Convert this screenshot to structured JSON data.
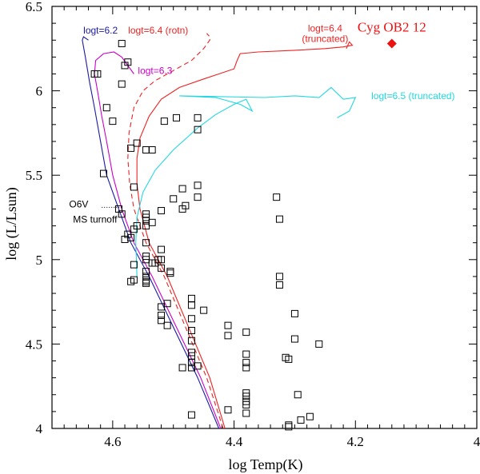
{
  "chart_data": {
    "type": "scatter",
    "title": "",
    "xlabel": "log Temp(K)",
    "ylabel": "log (L/Lsun)",
    "xlim": [
      4.7,
      4.0
    ],
    "ylim": [
      4.0,
      6.5
    ],
    "x_ticks": [
      "4.6",
      "4.4",
      "4.2",
      "4"
    ],
    "x_tick_values": [
      4.6,
      4.4,
      4.2,
      4.0
    ],
    "y_ticks": [
      "4",
      "4.5",
      "5",
      "5.5",
      "6",
      "6.5"
    ],
    "y_tick_values": [
      4.0,
      4.5,
      5.0,
      5.5,
      6.0,
      6.5
    ],
    "series": [
      {
        "name": "logt=6.2",
        "kind": "line",
        "color": "#1a1aa6",
        "dash": false,
        "x": [
          4.425,
          4.46,
          4.5,
          4.54,
          4.57,
          4.59,
          4.61,
          4.62,
          4.63,
          4.638,
          4.645,
          4.65,
          4.648,
          4.64
        ],
        "y": [
          4.0,
          4.3,
          4.6,
          4.9,
          5.1,
          5.3,
          5.5,
          5.7,
          5.9,
          6.05,
          6.2,
          6.3,
          6.32,
          6.3
        ]
      },
      {
        "name": "logt=6.3",
        "kind": "line",
        "color": "#cc00cc",
        "dash": false,
        "x": [
          4.422,
          4.455,
          4.495,
          4.535,
          4.565,
          4.585,
          4.6,
          4.61,
          4.618,
          4.625,
          4.63,
          4.628,
          4.615,
          4.598,
          4.585,
          4.565
        ],
        "y": [
          4.0,
          4.3,
          4.6,
          4.9,
          5.1,
          5.3,
          5.5,
          5.7,
          5.85,
          6.0,
          6.1,
          6.18,
          6.22,
          6.23,
          6.2,
          6.1
        ]
      },
      {
        "name": "logt=6.4 (rotn)",
        "kind": "line",
        "color": "#ee2222",
        "dash": true,
        "x": [
          4.418,
          4.445,
          4.48,
          4.515,
          4.545,
          4.565,
          4.572,
          4.575,
          4.573,
          4.565,
          4.55,
          4.53,
          4.5,
          4.47,
          4.45,
          4.44,
          4.44,
          4.445
        ],
        "y": [
          4.0,
          4.3,
          4.6,
          4.9,
          5.1,
          5.3,
          5.45,
          5.6,
          5.75,
          5.9,
          6.0,
          6.06,
          6.12,
          6.18,
          6.25,
          6.3,
          6.32,
          6.34
        ]
      },
      {
        "name": "logt=6.4 (truncated)",
        "kind": "line",
        "color": "#ee2222",
        "dash": false,
        "x": [
          4.415,
          4.44,
          4.475,
          4.51,
          4.54,
          4.555,
          4.56,
          4.56,
          4.555,
          4.54,
          4.52,
          4.49,
          4.45,
          4.425,
          4.4,
          4.395,
          4.39,
          4.36,
          4.3,
          4.25,
          4.22,
          4.205,
          4.21,
          4.215
        ],
        "y": [
          4.0,
          4.3,
          4.6,
          4.9,
          5.1,
          5.3,
          5.45,
          5.6,
          5.72,
          5.85,
          5.95,
          6.02,
          6.07,
          6.1,
          6.13,
          6.18,
          6.22,
          6.23,
          6.24,
          6.25,
          6.26,
          6.27,
          6.29,
          6.25
        ]
      },
      {
        "name": "logt=6.5 (truncated)",
        "kind": "line",
        "color": "#22d8e0",
        "dash": false,
        "x": [
          4.56,
          4.562,
          4.56,
          4.55,
          4.53,
          4.5,
          4.46,
          4.43,
          4.4,
          4.38,
          4.37,
          4.39,
          4.43,
          4.49,
          4.35,
          4.3,
          4.26,
          4.24,
          4.22,
          4.2,
          4.21,
          4.23
        ],
        "y": [
          4.9,
          5.1,
          5.25,
          5.4,
          5.53,
          5.65,
          5.78,
          5.86,
          5.92,
          5.95,
          5.88,
          5.92,
          5.96,
          5.97,
          5.96,
          5.97,
          5.96,
          6.02,
          5.95,
          5.96,
          5.88,
          5.84
        ]
      },
      {
        "name": "O stars",
        "kind": "scatter",
        "marker": "open-square",
        "color": "#000000",
        "x": [
          4.63,
          4.61,
          4.6,
          4.585,
          4.58,
          4.575,
          4.585,
          4.625,
          4.615,
          4.56,
          4.59,
          4.585,
          4.57,
          4.565,
          4.545,
          4.535,
          4.515,
          4.495,
          4.46,
          4.46,
          4.535,
          4.52,
          4.5,
          4.485,
          4.46,
          4.46,
          4.485,
          4.48,
          4.545,
          4.545,
          4.545,
          4.545,
          4.525,
          4.52,
          4.57,
          4.565,
          4.565,
          4.545,
          4.545,
          4.545,
          4.535,
          4.53,
          4.52,
          4.505,
          4.505,
          4.545,
          4.545,
          4.545,
          4.545,
          4.52,
          4.52,
          4.52,
          4.51,
          4.47,
          4.47,
          4.47,
          4.47,
          4.47,
          4.47,
          4.47,
          4.47,
          4.47,
          4.45,
          4.485,
          4.46,
          4.47,
          4.41,
          4.41,
          4.38,
          4.38,
          4.38,
          4.38,
          4.38,
          4.38,
          4.38,
          4.38,
          4.38,
          4.41,
          4.33,
          4.325,
          4.325,
          4.325,
          4.3,
          4.3,
          4.31,
          4.26,
          4.31,
          4.31,
          4.29,
          4.275,
          4.315,
          4.295,
          4.58,
          4.575,
          4.56,
          4.57,
          4.565,
          4.545,
          4.52,
          4.51
        ],
        "y": [
          6.1,
          5.9,
          5.82,
          6.04,
          6.15,
          6.17,
          6.28,
          6.1,
          5.51,
          5.69,
          5.3,
          5.27,
          5.66,
          5.43,
          5.65,
          5.65,
          5.82,
          5.84,
          5.84,
          5.77,
          5.22,
          5.29,
          5.36,
          5.42,
          5.44,
          5.37,
          5.3,
          5.32,
          5.25,
          5.23,
          5.27,
          5.2,
          5.0,
          5.0,
          4.87,
          4.88,
          4.97,
          5.02,
          5.0,
          4.93,
          4.98,
          4.98,
          4.95,
          4.92,
          4.93,
          4.87,
          4.9,
          4.88,
          4.86,
          4.72,
          4.67,
          4.64,
          4.61,
          4.77,
          4.73,
          4.65,
          4.58,
          4.52,
          4.45,
          4.43,
          4.39,
          4.36,
          4.7,
          4.36,
          4.37,
          4.08,
          4.61,
          4.55,
          4.57,
          4.44,
          4.39,
          4.36,
          4.21,
          4.19,
          4.16,
          4.14,
          4.09,
          4.11,
          5.37,
          5.24,
          4.9,
          4.85,
          4.68,
          4.53,
          4.41,
          4.5,
          4.02,
          4.01,
          4.05,
          4.07,
          4.42,
          4.2,
          5.12,
          5.15,
          5.2,
          5.13,
          5.18,
          5.1,
          5.06,
          4.74
        ]
      }
    ],
    "highlight": {
      "name": "Cyg OB2 12",
      "x": 4.14,
      "y": 6.28,
      "marker": "filled-diamond",
      "color": "#ee1111"
    },
    "annotations": [
      {
        "text": "logt=6.2",
        "color": "#1a1aa6",
        "x": 4.62,
        "y": 6.34
      },
      {
        "text": "logt=6.4 (rotn)",
        "color": "#ee2222",
        "x": 4.525,
        "y": 6.34
      },
      {
        "text": "logt=6.4",
        "color": "#ee2222",
        "x": 4.25,
        "y": 6.35
      },
      {
        "text": "(truncated)",
        "color": "#ee2222",
        "x": 4.25,
        "y": 6.29
      },
      {
        "text": "logt=6.3",
        "color": "#cc00cc",
        "x": 4.53,
        "y": 6.1
      },
      {
        "text": "logt=6.5 (truncated)",
        "color": "#22d8e0",
        "x": 4.105,
        "y": 5.95
      },
      {
        "text": "Cyg OB2 12",
        "color": "#ee1111",
        "x": 4.14,
        "y": 6.35
      },
      {
        "text": "O6V",
        "color": "#000000",
        "x": 4.656,
        "y": 5.31
      },
      {
        "text": "MS turnoff",
        "color": "#000000",
        "x": 4.629,
        "y": 5.22
      }
    ],
    "o6v_line": {
      "x_from": 4.618,
      "x_to": 4.585,
      "y": 5.31
    },
    "grid": false,
    "legend": "none"
  }
}
